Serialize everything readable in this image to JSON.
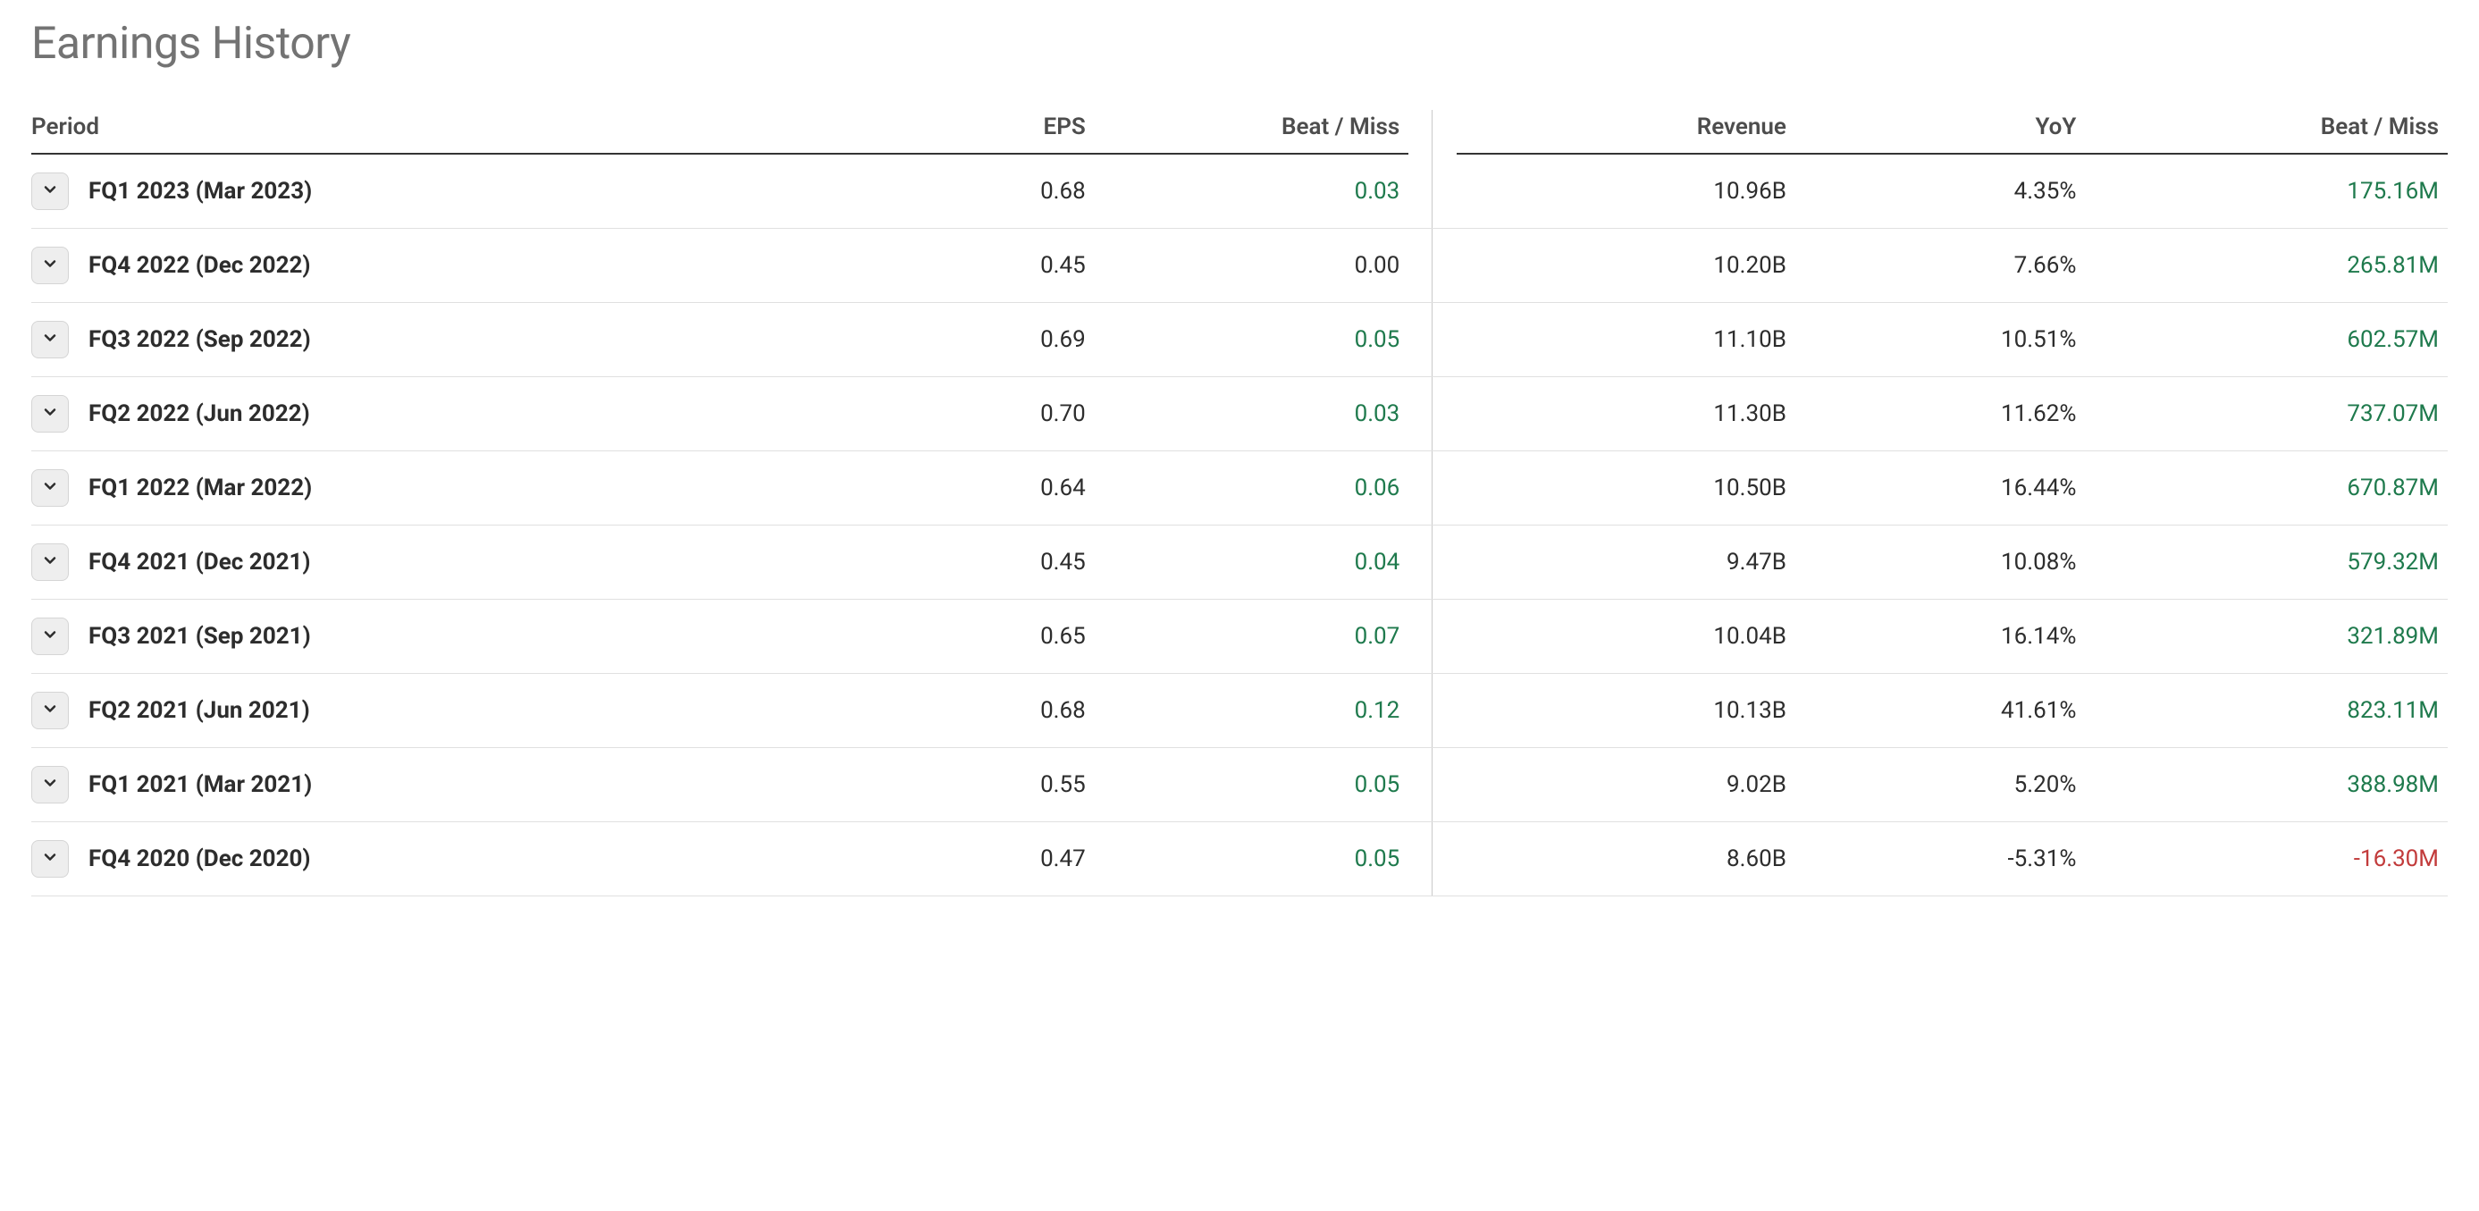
{
  "title": "Earnings History",
  "colors": {
    "title_color": "#737373",
    "header_text": "#4d4d4d",
    "body_text": "#2d2d2d",
    "positive": "#1f7a4d",
    "negative": "#c23b3b",
    "neutral": "#2d2d2d",
    "row_border": "#e0e0e0",
    "header_border": "#333333",
    "divider": "#c9c9c9",
    "expand_btn_bg": "#eeeeee",
    "expand_btn_border": "#d5d5d5",
    "background": "#ffffff"
  },
  "table": {
    "columns": {
      "period": "Period",
      "eps": "EPS",
      "eps_beat_miss": "Beat / Miss",
      "revenue": "Revenue",
      "yoy": "YoY",
      "rev_beat_miss": "Beat / Miss"
    },
    "rows": [
      {
        "period": "FQ1 2023 (Mar 2023)",
        "eps": "0.68",
        "eps_bm": "0.03",
        "eps_bm_sign": "positive",
        "revenue": "10.96B",
        "yoy": "4.35%",
        "rev_bm": "175.16M",
        "rev_bm_sign": "positive"
      },
      {
        "period": "FQ4 2022 (Dec 2022)",
        "eps": "0.45",
        "eps_bm": "0.00",
        "eps_bm_sign": "neutral",
        "revenue": "10.20B",
        "yoy": "7.66%",
        "rev_bm": "265.81M",
        "rev_bm_sign": "positive"
      },
      {
        "period": "FQ3 2022 (Sep 2022)",
        "eps": "0.69",
        "eps_bm": "0.05",
        "eps_bm_sign": "positive",
        "revenue": "11.10B",
        "yoy": "10.51%",
        "rev_bm": "602.57M",
        "rev_bm_sign": "positive"
      },
      {
        "period": "FQ2 2022 (Jun 2022)",
        "eps": "0.70",
        "eps_bm": "0.03",
        "eps_bm_sign": "positive",
        "revenue": "11.30B",
        "yoy": "11.62%",
        "rev_bm": "737.07M",
        "rev_bm_sign": "positive"
      },
      {
        "period": "FQ1 2022 (Mar 2022)",
        "eps": "0.64",
        "eps_bm": "0.06",
        "eps_bm_sign": "positive",
        "revenue": "10.50B",
        "yoy": "16.44%",
        "rev_bm": "670.87M",
        "rev_bm_sign": "positive"
      },
      {
        "period": "FQ4 2021 (Dec 2021)",
        "eps": "0.45",
        "eps_bm": "0.04",
        "eps_bm_sign": "positive",
        "revenue": "9.47B",
        "yoy": "10.08%",
        "rev_bm": "579.32M",
        "rev_bm_sign": "positive"
      },
      {
        "period": "FQ3 2021 (Sep 2021)",
        "eps": "0.65",
        "eps_bm": "0.07",
        "eps_bm_sign": "positive",
        "revenue": "10.04B",
        "yoy": "16.14%",
        "rev_bm": "321.89M",
        "rev_bm_sign": "positive"
      },
      {
        "period": "FQ2 2021 (Jun 2021)",
        "eps": "0.68",
        "eps_bm": "0.12",
        "eps_bm_sign": "positive",
        "revenue": "10.13B",
        "yoy": "41.61%",
        "rev_bm": "823.11M",
        "rev_bm_sign": "positive"
      },
      {
        "period": "FQ1 2021 (Mar 2021)",
        "eps": "0.55",
        "eps_bm": "0.05",
        "eps_bm_sign": "positive",
        "revenue": "9.02B",
        "yoy": "5.20%",
        "rev_bm": "388.98M",
        "rev_bm_sign": "positive"
      },
      {
        "period": "FQ4 2020 (Dec 2020)",
        "eps": "0.47",
        "eps_bm": "0.05",
        "eps_bm_sign": "positive",
        "revenue": "8.60B",
        "yoy": "-5.31%",
        "rev_bm": "-16.30M",
        "rev_bm_sign": "negative"
      }
    ]
  }
}
